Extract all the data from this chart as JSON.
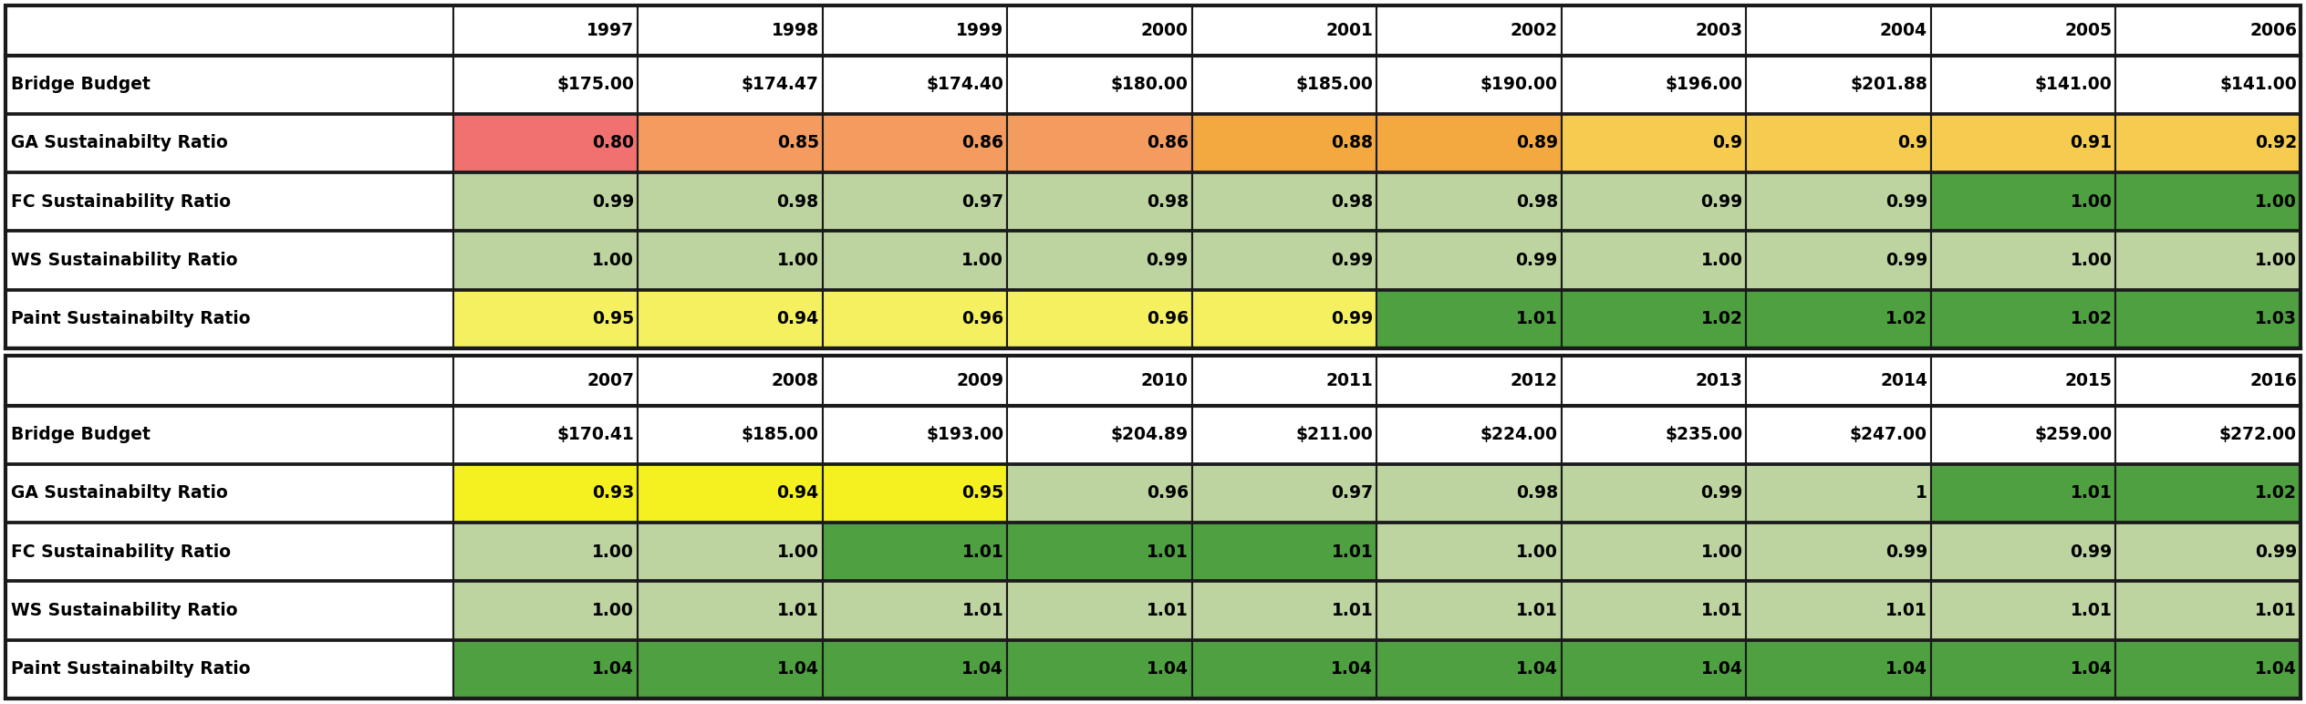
{
  "years_row1": [
    "1997",
    "1998",
    "1999",
    "2000",
    "2001",
    "2002",
    "2003",
    "2004",
    "2005",
    "2006"
  ],
  "years_row2": [
    "2007",
    "2008",
    "2009",
    "2010",
    "2011",
    "2012",
    "2013",
    "2014",
    "2015",
    "2016"
  ],
  "row_labels": [
    "Bridge Budget",
    "GA Sustainabilty Ratio",
    "FC Sustainability Ratio",
    "WS Sustainability Ratio",
    "Paint Sustainabilty Ratio"
  ],
  "data_row1": [
    [
      "$175.00",
      "$174.47",
      "$174.40",
      "$180.00",
      "$185.00",
      "$190.00",
      "$196.00",
      "$201.88",
      "$141.00",
      "$141.00"
    ],
    [
      "0.80",
      "0.85",
      "0.86",
      "0.86",
      "0.88",
      "0.89",
      "0.9",
      "0.9",
      "0.91",
      "0.92"
    ],
    [
      "0.99",
      "0.98",
      "0.97",
      "0.98",
      "0.98",
      "0.98",
      "0.99",
      "0.99",
      "1.00",
      "1.00"
    ],
    [
      "1.00",
      "1.00",
      "1.00",
      "0.99",
      "0.99",
      "0.99",
      "1.00",
      "0.99",
      "1.00",
      "1.00"
    ],
    [
      "0.95",
      "0.94",
      "0.96",
      "0.96",
      "0.99",
      "1.01",
      "1.02",
      "1.02",
      "1.02",
      "1.03"
    ]
  ],
  "data_row2": [
    [
      "$170.41",
      "$185.00",
      "$193.00",
      "$204.89",
      "$211.00",
      "$224.00",
      "$235.00",
      "$247.00",
      "$259.00",
      "$272.00"
    ],
    [
      "0.93",
      "0.94",
      "0.95",
      "0.96",
      "0.97",
      "0.98",
      "0.99",
      "1",
      "1.01",
      "1.02"
    ],
    [
      "1.00",
      "1.00",
      "1.01",
      "1.01",
      "1.01",
      "1.00",
      "1.00",
      "0.99",
      "0.99",
      "0.99"
    ],
    [
      "1.00",
      "1.01",
      "1.01",
      "1.01",
      "1.01",
      "1.01",
      "1.01",
      "1.01",
      "1.01",
      "1.01"
    ],
    [
      "1.04",
      "1.04",
      "1.04",
      "1.04",
      "1.04",
      "1.04",
      "1.04",
      "1.04",
      "1.04",
      "1.04"
    ]
  ],
  "colors_row1": [
    [
      "#ffffff",
      "#ffffff",
      "#ffffff",
      "#ffffff",
      "#ffffff",
      "#ffffff",
      "#ffffff",
      "#ffffff",
      "#ffffff",
      "#ffffff"
    ],
    [
      "#f17070",
      "#f49b60",
      "#f49b60",
      "#f49b60",
      "#f4a840",
      "#f4a840",
      "#f5cc50",
      "#f5cc50",
      "#f5cc50",
      "#f5cc50"
    ],
    [
      "#bdd4a0",
      "#bdd4a0",
      "#bdd4a0",
      "#bdd4a0",
      "#bdd4a0",
      "#bdd4a0",
      "#bdd4a0",
      "#bdd4a0",
      "#4fa040",
      "#4fa040"
    ],
    [
      "#bdd4a0",
      "#bdd4a0",
      "#bdd4a0",
      "#bdd4a0",
      "#bdd4a0",
      "#bdd4a0",
      "#bdd4a0",
      "#bdd4a0",
      "#bdd4a0",
      "#bdd4a0"
    ],
    [
      "#f5f060",
      "#f5f060",
      "#f5f060",
      "#f5f060",
      "#f5f060",
      "#4fa040",
      "#4fa040",
      "#4fa040",
      "#4fa040",
      "#4fa040"
    ]
  ],
  "colors_row2": [
    [
      "#ffffff",
      "#ffffff",
      "#ffffff",
      "#ffffff",
      "#ffffff",
      "#ffffff",
      "#ffffff",
      "#ffffff",
      "#ffffff",
      "#ffffff"
    ],
    [
      "#f5f020",
      "#f5f020",
      "#f5f020",
      "#bdd4a0",
      "#bdd4a0",
      "#bdd4a0",
      "#bdd4a0",
      "#bdd4a0",
      "#4fa040",
      "#4fa040"
    ],
    [
      "#bdd4a0",
      "#bdd4a0",
      "#4fa040",
      "#4fa040",
      "#4fa040",
      "#bdd4a0",
      "#bdd4a0",
      "#bdd4a0",
      "#bdd4a0",
      "#bdd4a0"
    ],
    [
      "#bdd4a0",
      "#bdd4a0",
      "#bdd4a0",
      "#bdd4a0",
      "#bdd4a0",
      "#bdd4a0",
      "#bdd4a0",
      "#bdd4a0",
      "#bdd4a0",
      "#bdd4a0"
    ],
    [
      "#4fa040",
      "#4fa040",
      "#4fa040",
      "#4fa040",
      "#4fa040",
      "#4fa040",
      "#4fa040",
      "#4fa040",
      "#4fa040",
      "#4fa040"
    ]
  ]
}
